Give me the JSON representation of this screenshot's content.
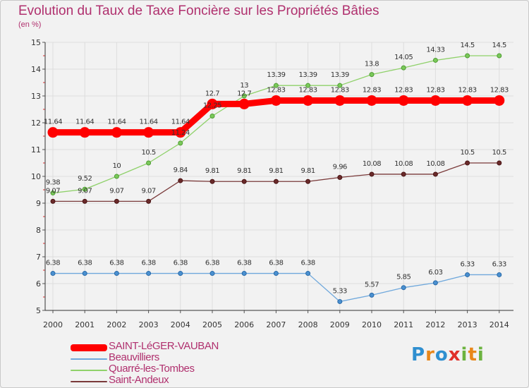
{
  "title": "Evolution du Taux de Taxe Foncière sur les Propriétés Bâties",
  "unit_label": "(en %)",
  "logo": {
    "text": "Proxiti",
    "colors": [
      "#2f8fd0",
      "#e8871a",
      "#2f8fd0",
      "#e0302a",
      "#6cb33f",
      "#e8871a",
      "#6cb33f"
    ]
  },
  "chart_data": {
    "type": "line",
    "title": "Evolution du Taux de Taxe Foncière sur les Propriétés Bâties",
    "ylabel": "(en %)",
    "xlabel": "",
    "ylim": [
      5,
      15
    ],
    "yticks": [
      "5",
      "6",
      "7",
      "8",
      "9",
      "10",
      "11",
      "12",
      "13",
      "14",
      "15"
    ],
    "categories": [
      "2000",
      "2001",
      "2002",
      "2003",
      "2004",
      "2005",
      "2006",
      "2007",
      "2008",
      "2009",
      "2010",
      "2011",
      "2012",
      "2013",
      "2014"
    ],
    "legend_position": "bottom-left",
    "series": [
      {
        "name": "SAINT-LéGER-VAUBAN",
        "color": "#ff0000",
        "values": [
          11.64,
          11.64,
          11.64,
          11.64,
          11.64,
          12.7,
          12.7,
          12.83,
          12.83,
          12.83,
          12.83,
          12.83,
          12.83,
          12.83,
          12.83
        ],
        "labels": [
          "11.64",
          "11.64",
          "11.64",
          "11.64",
          "11.64",
          "12.7",
          "12.7",
          "12.83",
          "12.83",
          "12.83",
          "12.83",
          "12.83",
          "12.83",
          "12.83",
          "12.83"
        ]
      },
      {
        "name": "Beauvilliers",
        "color": "#6fa8dc",
        "values": [
          6.38,
          6.38,
          6.38,
          6.38,
          6.38,
          6.38,
          6.38,
          6.38,
          6.38,
          5.33,
          5.57,
          5.85,
          6.03,
          6.33,
          6.33
        ],
        "labels": [
          "6.38",
          "6.38",
          "6.38",
          "6.38",
          "6.38",
          "6.38",
          "6.38",
          "6.38",
          "6.38",
          "5.33",
          "5.57",
          "5.85",
          "6.03",
          "6.33",
          "6.33"
        ]
      },
      {
        "name": "Quarré-les-Tombes",
        "color": "#8fd16a",
        "values": [
          9.38,
          9.52,
          10,
          10.5,
          11.24,
          12.25,
          13,
          13.39,
          13.39,
          13.39,
          13.8,
          14.05,
          14.33,
          14.5,
          14.5
        ],
        "labels": [
          "9.38",
          "9.52",
          "10",
          "10.5",
          "11.24",
          "12.25",
          "13",
          "13.39",
          "13.39",
          "13.39",
          "13.8",
          "14.05",
          "14.33",
          "14.5",
          "14.5"
        ]
      },
      {
        "name": "Saint-Andeux",
        "color": "#7a3a3a",
        "values": [
          9.07,
          9.07,
          9.07,
          9.07,
          9.84,
          9.81,
          9.81,
          9.81,
          9.81,
          9.96,
          10.08,
          10.08,
          10.08,
          10.5,
          10.5
        ],
        "labels": [
          "9.07",
          "9.07",
          "9.07",
          "9.07",
          "9.84",
          "9.81",
          "9.81",
          "9.81",
          "9.81",
          "9.96",
          "10.08",
          "10.08",
          "10.08",
          "10.5",
          "10.5"
        ]
      }
    ]
  }
}
